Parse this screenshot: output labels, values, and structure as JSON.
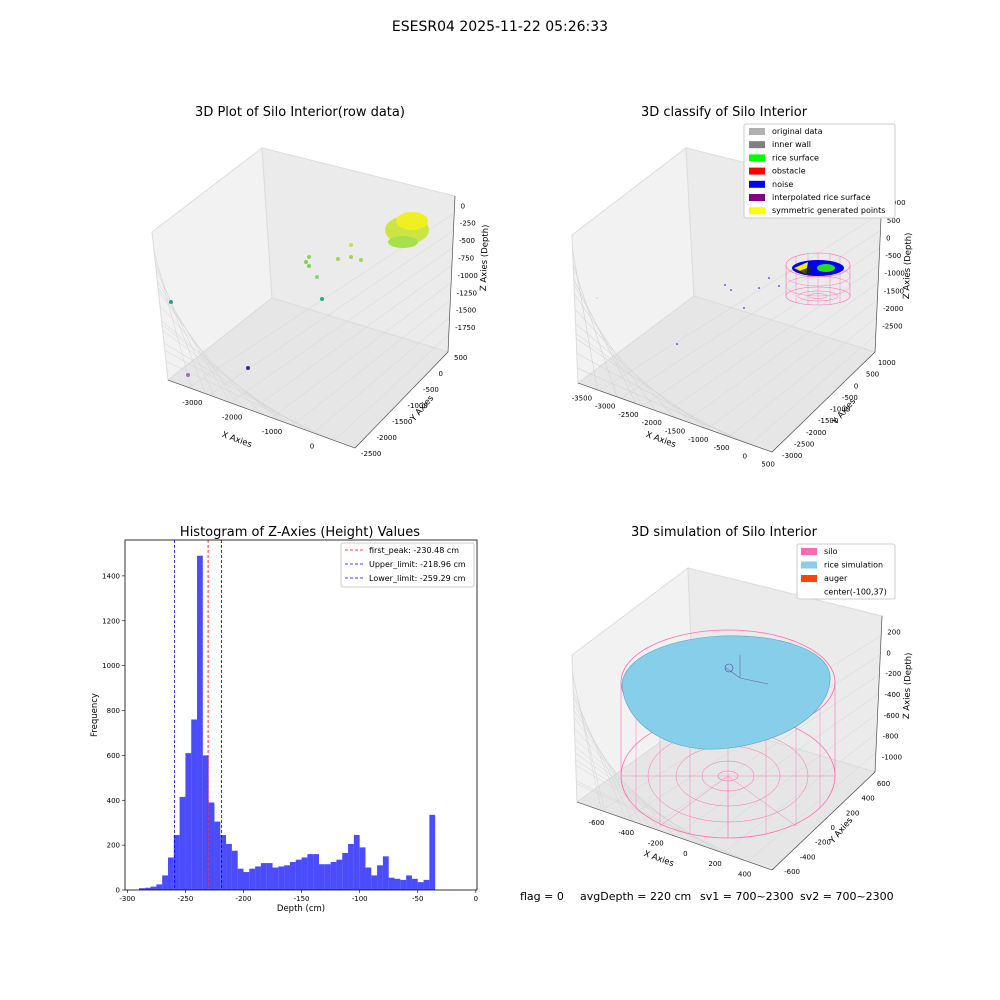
{
  "suptitle": "ESESR04 2025-11-22 05:26:33",
  "panels": {
    "raw": {
      "title": "3D Plot of Silo Interior(row data)",
      "xlabel": "X Axies",
      "ylabel": "Y Axies",
      "zlabel": "Z Axies (Depth)",
      "xticks": [
        "-3000",
        "-2000",
        "-1000",
        "0"
      ],
      "yticks": [
        "500",
        "0",
        "-500",
        "-1000",
        "-1500",
        "-2000",
        "-2500"
      ],
      "zticks": [
        "0",
        "-250",
        "-500",
        "-750",
        "-1000",
        "-1250",
        "-1500",
        "-1750"
      ]
    },
    "classify": {
      "title": "3D classify of Silo Interior",
      "xlabel": "X Axies",
      "ylabel": "Y Axies",
      "zlabel": "Z Axies (Depth)",
      "xticks": [
        "-3500",
        "-3000",
        "-2500",
        "-2000",
        "-1500",
        "-1000",
        "-500",
        "0",
        "500"
      ],
      "yticks": [
        "1000",
        "500",
        "0",
        "-500",
        "-1000",
        "-1500",
        "-2000",
        "-2500",
        "-3000"
      ],
      "zticks": [
        "1000",
        "500",
        "0",
        "-500",
        "-1000",
        "-1500",
        "-2000",
        "-2500"
      ],
      "legend": [
        {
          "label": "original data",
          "color": "#b0b0b0"
        },
        {
          "label": "inner wall",
          "color": "#808080"
        },
        {
          "label": "rice surface",
          "color": "#00ff00"
        },
        {
          "label": "obstacle",
          "color": "#ff0000"
        },
        {
          "label": "noise",
          "color": "#0000ff"
        },
        {
          "label": "interpolated rice surface",
          "color": "#800080"
        },
        {
          "label": "symmetric generated points",
          "color": "#ffff00"
        }
      ]
    },
    "sim": {
      "title": "3D simulation of Silo Interior",
      "xlabel": "X Axies",
      "ylabel": "Y Axies",
      "zlabel": "Z Axies (Depth)",
      "xticks": [
        "-600",
        "-400",
        "-200",
        "0",
        "200",
        "400"
      ],
      "yticks": [
        "600",
        "400",
        "200",
        "0",
        "-200",
        "-400",
        "-600"
      ],
      "zticks": [
        "200",
        "0",
        "-200",
        "-400",
        "-600",
        "-800",
        "-1000"
      ],
      "legend": [
        {
          "label": "silo",
          "color": "#ff69b4"
        },
        {
          "label": "rice simulation",
          "color": "#87ceeb"
        },
        {
          "label": "auger",
          "color": "#ff4500"
        },
        {
          "label": "center(-100,37)",
          "color": ""
        }
      ]
    }
  },
  "chart_data": {
    "type": "bar",
    "title": "Histogram of Z-Axies (Height) Values",
    "xlabel": "Depth (cm)",
    "ylabel": "Frequency",
    "xlim": [
      -302,
      1
    ],
    "ylim": [
      0,
      1560
    ],
    "bar_color": "#0000ff",
    "xticks": [
      -300,
      -250,
      -200,
      -150,
      -100,
      -50,
      0
    ],
    "yticks": [
      0,
      200,
      400,
      600,
      800,
      1000,
      1200,
      1400
    ],
    "bin_edges_start": -290,
    "bin_width": 5,
    "values": [
      8,
      10,
      15,
      25,
      65,
      145,
      245,
      415,
      610,
      760,
      1490,
      600,
      390,
      305,
      245,
      205,
      175,
      95,
      80,
      95,
      105,
      120,
      120,
      100,
      105,
      110,
      125,
      135,
      145,
      160,
      160,
      115,
      115,
      125,
      135,
      165,
      205,
      245,
      190,
      100,
      65,
      110,
      150,
      55,
      50,
      45,
      65,
      50,
      35,
      45,
      335
    ],
    "lines": [
      {
        "label": "first_peak: -230.48 cm",
        "x": -230.48,
        "color": "#ff0000"
      },
      {
        "label": "Upper_limit: -218.96 cm",
        "x": -218.96,
        "color": "#0000ff"
      },
      {
        "label": "Lower_limit: -259.29 cm",
        "x": -259.29,
        "color": "#0000ff"
      }
    ]
  },
  "footer": {
    "flag": "flag = 0",
    "avg_depth": "avgDepth = 220 cm",
    "sv1": "sv1 = 700~2300",
    "sv2": "sv2 = 700~2300"
  }
}
